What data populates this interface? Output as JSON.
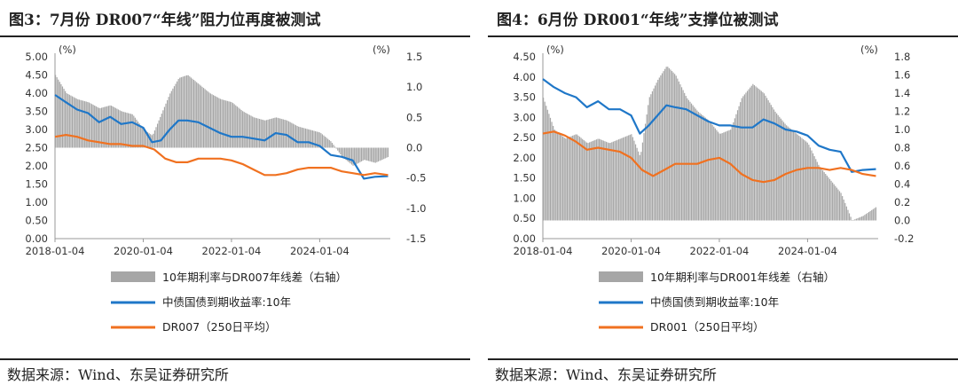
{
  "chart_data": [
    {
      "type": "line",
      "title": "图3：7月份 DR007“年线”阻力位再度被测试",
      "source": "数据来源：Wind、东吴证券研究所",
      "unit_left": "(%)",
      "unit_right": "(%)",
      "ylim_left": [
        0,
        5
      ],
      "ylim_right": [
        -1.5,
        1.5
      ],
      "yticks_left": [
        "5.00",
        "4.50",
        "4.00",
        "3.50",
        "3.00",
        "2.50",
        "2.00",
        "1.50",
        "1.00",
        "0.50",
        "0.00"
      ],
      "yticks_right": [
        "1.5",
        "1.0",
        "0.5",
        "0.0",
        "-0.5",
        "-1.0",
        "-1.5"
      ],
      "xticks": [
        "2018-01-04",
        "2020-01-04",
        "2022-01-04",
        "2024-01-04"
      ],
      "xlim": [
        2018.0,
        2025.6
      ],
      "colors": {
        "spread": "#a6a6a6",
        "yield10y": "#1f77c8",
        "dr": "#f07120"
      },
      "series": [
        {
          "name": "10年期利率与DR007年线差（右轴）",
          "kind": "bar",
          "axis": "right",
          "x": [
            2018.0,
            2018.25,
            2018.5,
            2018.75,
            2019.0,
            2019.25,
            2019.5,
            2019.75,
            2020.0,
            2020.2,
            2020.4,
            2020.6,
            2020.8,
            2021.0,
            2021.25,
            2021.5,
            2021.75,
            2022.0,
            2022.25,
            2022.5,
            2022.75,
            2023.0,
            2023.25,
            2023.5,
            2023.75,
            2024.0,
            2024.25,
            2024.5,
            2024.75,
            2025.0,
            2025.25,
            2025.55
          ],
          "values": [
            1.2,
            0.9,
            0.8,
            0.75,
            0.65,
            0.7,
            0.6,
            0.55,
            0.3,
            0.2,
            0.55,
            0.9,
            1.15,
            1.2,
            1.05,
            0.9,
            0.8,
            0.75,
            0.6,
            0.5,
            0.45,
            0.5,
            0.45,
            0.35,
            0.3,
            0.25,
            0.1,
            -0.15,
            -0.3,
            -0.2,
            -0.25,
            -0.15
          ]
        },
        {
          "name": "中债国债到期收益率:10年",
          "kind": "line",
          "axis": "left",
          "x": [
            2018.0,
            2018.25,
            2018.5,
            2018.75,
            2019.0,
            2019.25,
            2019.5,
            2019.75,
            2020.0,
            2020.2,
            2020.4,
            2020.6,
            2020.8,
            2021.0,
            2021.25,
            2021.5,
            2021.75,
            2022.0,
            2022.25,
            2022.5,
            2022.75,
            2023.0,
            2023.25,
            2023.5,
            2023.75,
            2024.0,
            2024.25,
            2024.5,
            2024.75,
            2025.0,
            2025.25,
            2025.55
          ],
          "values": [
            3.95,
            3.75,
            3.55,
            3.45,
            3.2,
            3.35,
            3.15,
            3.2,
            3.05,
            2.65,
            2.7,
            3.0,
            3.25,
            3.25,
            3.2,
            3.05,
            2.9,
            2.8,
            2.8,
            2.75,
            2.7,
            2.9,
            2.85,
            2.65,
            2.65,
            2.55,
            2.3,
            2.25,
            2.15,
            1.65,
            1.7,
            1.72
          ]
        },
        {
          "name": "DR007（250日平均）",
          "kind": "line",
          "axis": "left",
          "x": [
            2018.0,
            2018.25,
            2018.5,
            2018.75,
            2019.0,
            2019.25,
            2019.5,
            2019.75,
            2020.0,
            2020.25,
            2020.5,
            2020.75,
            2021.0,
            2021.25,
            2021.5,
            2021.75,
            2022.0,
            2022.25,
            2022.5,
            2022.75,
            2023.0,
            2023.25,
            2023.5,
            2023.75,
            2024.0,
            2024.25,
            2024.5,
            2024.75,
            2025.0,
            2025.25,
            2025.55
          ],
          "values": [
            2.8,
            2.85,
            2.8,
            2.7,
            2.65,
            2.6,
            2.6,
            2.55,
            2.55,
            2.45,
            2.2,
            2.1,
            2.1,
            2.2,
            2.2,
            2.2,
            2.15,
            2.05,
            1.9,
            1.75,
            1.75,
            1.8,
            1.9,
            1.95,
            1.95,
            1.95,
            1.85,
            1.8,
            1.75,
            1.8,
            1.75
          ]
        }
      ]
    },
    {
      "type": "line",
      "title": "图4：6月份 DR001“年线”支撑位被测试",
      "source": "数据来源：Wind、东吴证券研究所",
      "unit_left": "(%)",
      "unit_right": "(%)",
      "ylim_left": [
        0,
        4.5
      ],
      "ylim_right": [
        -0.2,
        1.8
      ],
      "yticks_left": [
        "4.50",
        "4.00",
        "3.50",
        "3.00",
        "2.50",
        "2.00",
        "1.50",
        "1.00",
        "0.50",
        "0.00"
      ],
      "yticks_right": [
        "1.8",
        "1.6",
        "1.4",
        "1.2",
        "1.0",
        "0.8",
        "0.6",
        "0.4",
        "0.2",
        "0.0",
        "-0.2"
      ],
      "xticks": [
        "2018-01-04",
        "2020-01-04",
        "2022-01-04",
        "2024-01-04"
      ],
      "xlim": [
        2018.0,
        2025.6
      ],
      "colors": {
        "spread": "#a6a6a6",
        "yield10y": "#1f77c8",
        "dr": "#f07120"
      },
      "series": [
        {
          "name": "10年期利率与DR001年线差（右轴）",
          "kind": "bar",
          "axis": "right",
          "x": [
            2018.0,
            2018.25,
            2018.5,
            2018.75,
            2019.0,
            2019.25,
            2019.5,
            2019.75,
            2020.0,
            2020.2,
            2020.4,
            2020.6,
            2020.8,
            2021.0,
            2021.25,
            2021.5,
            2021.75,
            2022.0,
            2022.25,
            2022.5,
            2022.75,
            2023.0,
            2023.25,
            2023.5,
            2023.75,
            2024.0,
            2024.25,
            2024.5,
            2024.75,
            2025.0,
            2025.25,
            2025.55
          ],
          "values": [
            1.35,
            1.0,
            0.9,
            0.95,
            0.85,
            0.9,
            0.85,
            0.9,
            0.95,
            0.7,
            1.35,
            1.55,
            1.7,
            1.6,
            1.35,
            1.2,
            1.1,
            0.95,
            1.0,
            1.35,
            1.5,
            1.4,
            1.2,
            1.05,
            0.95,
            0.85,
            0.6,
            0.45,
            0.3,
            0.0,
            0.05,
            0.15
          ]
        },
        {
          "name": "中债国债到期收益率:10年",
          "kind": "line",
          "axis": "left",
          "x": [
            2018.0,
            2018.25,
            2018.5,
            2018.75,
            2019.0,
            2019.25,
            2019.5,
            2019.75,
            2020.0,
            2020.2,
            2020.4,
            2020.6,
            2020.8,
            2021.0,
            2021.25,
            2021.5,
            2021.75,
            2022.0,
            2022.25,
            2022.5,
            2022.75,
            2023.0,
            2023.25,
            2023.5,
            2023.75,
            2024.0,
            2024.25,
            2024.5,
            2024.75,
            2025.0,
            2025.25,
            2025.55
          ],
          "values": [
            3.95,
            3.75,
            3.6,
            3.5,
            3.25,
            3.4,
            3.2,
            3.2,
            3.05,
            2.6,
            2.8,
            3.05,
            3.3,
            3.25,
            3.2,
            3.05,
            2.9,
            2.8,
            2.8,
            2.75,
            2.75,
            2.95,
            2.85,
            2.7,
            2.65,
            2.55,
            2.3,
            2.2,
            2.15,
            1.65,
            1.7,
            1.72
          ]
        },
        {
          "name": "DR001（250日平均）",
          "kind": "line",
          "axis": "left",
          "x": [
            2018.0,
            2018.25,
            2018.5,
            2018.75,
            2019.0,
            2019.25,
            2019.5,
            2019.75,
            2020.0,
            2020.25,
            2020.5,
            2020.75,
            2021.0,
            2021.25,
            2021.5,
            2021.75,
            2022.0,
            2022.25,
            2022.5,
            2022.75,
            2023.0,
            2023.25,
            2023.5,
            2023.75,
            2024.0,
            2024.25,
            2024.5,
            2024.75,
            2025.0,
            2025.25,
            2025.55
          ],
          "values": [
            2.6,
            2.65,
            2.55,
            2.4,
            2.2,
            2.25,
            2.2,
            2.15,
            2.0,
            1.7,
            1.55,
            1.7,
            1.85,
            1.85,
            1.85,
            1.95,
            2.0,
            1.85,
            1.6,
            1.45,
            1.4,
            1.45,
            1.6,
            1.7,
            1.75,
            1.75,
            1.7,
            1.75,
            1.7,
            1.6,
            1.55
          ]
        }
      ]
    }
  ]
}
